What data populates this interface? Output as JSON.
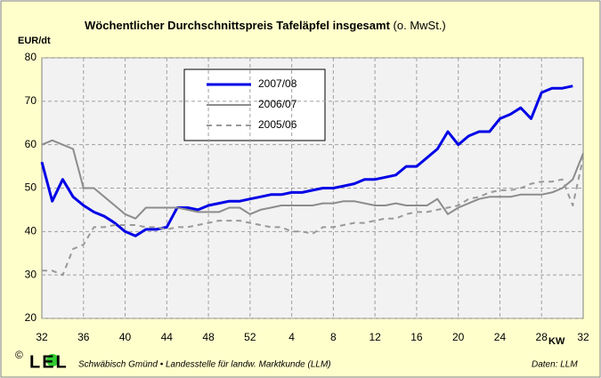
{
  "chart_data": {
    "type": "line",
    "title": "Wöchentlicher Durchschnittspreis Tafeläpfel insgesamt",
    "subtitle": "(o. MwSt.)",
    "y_label": "EUR/dt",
    "x_label": "KW",
    "categories": [
      "32",
      null,
      null,
      null,
      "36",
      null,
      null,
      null,
      "40",
      null,
      null,
      null,
      "44",
      null,
      null,
      null,
      "48",
      null,
      null,
      null,
      "52",
      null,
      null,
      null,
      "4",
      null,
      null,
      null,
      "8",
      null,
      null,
      null,
      "12",
      null,
      null,
      null,
      "16",
      null,
      null,
      null,
      "20",
      null,
      null,
      null,
      "24",
      null,
      null,
      null,
      "28",
      null,
      null,
      null,
      "32"
    ],
    "ylim": [
      20,
      80
    ],
    "yticks": [
      20,
      30,
      40,
      50,
      60,
      70,
      80
    ],
    "grid": true,
    "series": [
      {
        "name": "2007/08",
        "color": "#0000e6",
        "width": 3,
        "dashed": false,
        "values": [
          56,
          47,
          52,
          48,
          46,
          44.5,
          43.5,
          42,
          40,
          39,
          40.5,
          40.5,
          41,
          45.5,
          45.5,
          45,
          46,
          46.5,
          47,
          47,
          47.5,
          48,
          48.5,
          48.5,
          49,
          49,
          49.5,
          50,
          50,
          50.5,
          51,
          52,
          52,
          52.5,
          53,
          55,
          55,
          57,
          59,
          63,
          60,
          62,
          63,
          63,
          66,
          67,
          68.5,
          66,
          72,
          73,
          73,
          73.5,
          null
        ]
      },
      {
        "name": "2006/07",
        "color": "#8c8c8c",
        "width": 2,
        "dashed": false,
        "values": [
          60,
          61,
          60,
          59,
          50,
          50,
          48,
          46,
          44,
          43,
          45.5,
          45.5,
          45.5,
          45.5,
          45,
          44.5,
          44.5,
          44.5,
          45.5,
          45.5,
          44,
          45,
          45.5,
          46,
          46,
          46,
          46,
          46.5,
          46.5,
          47,
          47,
          46.5,
          46,
          46,
          46.5,
          46,
          46,
          46,
          47.5,
          44,
          45.5,
          46.5,
          47.5,
          48,
          48,
          48,
          48.5,
          48.5,
          48.5,
          49,
          50,
          52,
          58
        ]
      },
      {
        "name": "2005/06",
        "color": "#999999",
        "width": 2,
        "dashed": true,
        "values": [
          31,
          31,
          30,
          36,
          37,
          41,
          41,
          41.5,
          41.5,
          41.5,
          41,
          41,
          40.5,
          41,
          41,
          41.5,
          42,
          42.5,
          42.5,
          42.5,
          42,
          41.5,
          41,
          41,
          40,
          40,
          39.5,
          41,
          41,
          41.5,
          42,
          42,
          42.5,
          43,
          43,
          44,
          44.5,
          44.5,
          45,
          45.5,
          46,
          47.5,
          48,
          49,
          49.5,
          49.5,
          50,
          51,
          51.5,
          51.5,
          52,
          46,
          57
        ]
      }
    ],
    "logo": "LEL",
    "source": "Schwäbisch Gmünd • Landesstelle für landw. Marktkunde (LLM)",
    "credit": "Daten: LLM"
  }
}
